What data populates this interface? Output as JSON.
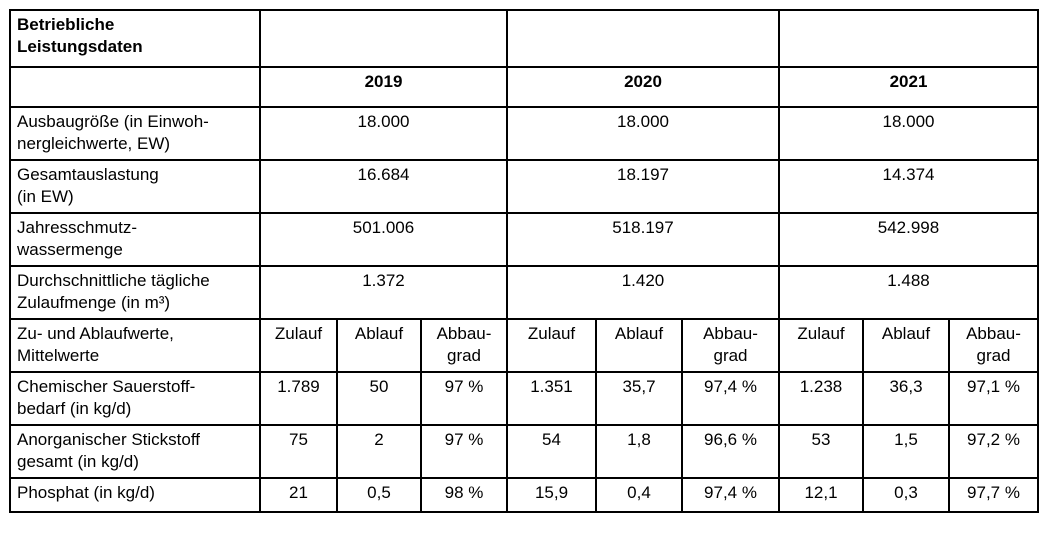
{
  "table": {
    "title": "Betriebliche Leistungsdaten",
    "years": [
      "2019",
      "2020",
      "2021"
    ],
    "summary_rows": [
      {
        "label": "Ausbaugröße (in Einwohnergleichwerte, EW)",
        "label_lines": [
          "Ausbaugröße (in Einwoh-",
          "nergleichwerte, EW)"
        ],
        "values": [
          "18.000",
          "18.000",
          "18.000"
        ]
      },
      {
        "label": "Gesamtauslastung (in EW)",
        "label_lines": [
          "Gesamtauslastung",
          "(in EW)"
        ],
        "values": [
          "16.684",
          "18.197",
          "14.374"
        ]
      },
      {
        "label": "Jahresschmutzwassermenge",
        "label_lines": [
          "Jahresschmutz-",
          "wassermenge"
        ],
        "values": [
          "501.006",
          "518.197",
          "542.998"
        ]
      },
      {
        "label": "Durchschnittliche tägliche Zulaufmenge (in m³)",
        "label_lines": [
          "Durchschnittliche tägliche",
          "Zulaufmenge (in m³)"
        ],
        "values": [
          "1.372",
          "1.420",
          "1.488"
        ]
      }
    ],
    "sub_header": {
      "label_lines": [
        "Zu- und Ablaufwerte,",
        "Mittelwerte"
      ],
      "columns": [
        {
          "lines": [
            "Zulauf"
          ]
        },
        {
          "lines": [
            "Ablauf"
          ]
        },
        {
          "lines": [
            "Abbau-",
            "grad"
          ]
        }
      ]
    },
    "detail_rows": [
      {
        "label_lines": [
          "Chemischer Sauerstoff-",
          "bedarf (in kg/d)"
        ],
        "values": [
          "1.789",
          "50",
          "97 %",
          "1.351",
          "35,7",
          "97,4 %",
          "1.238",
          "36,3",
          "97,1 %"
        ]
      },
      {
        "label_lines": [
          "Anorganischer Stickstoff",
          "gesamt (in kg/d)"
        ],
        "values": [
          "75",
          "2",
          "97 %",
          "54",
          "1,8",
          "96,6 %",
          "53",
          "1,5",
          "97,2 %"
        ]
      },
      {
        "label_lines": [
          "Phosphat (in kg/d)"
        ],
        "values": [
          "21",
          "0,5",
          "98 %",
          "15,9",
          "0,4",
          "97,4 %",
          "12,1",
          "0,3",
          "97,7 %"
        ]
      }
    ]
  }
}
